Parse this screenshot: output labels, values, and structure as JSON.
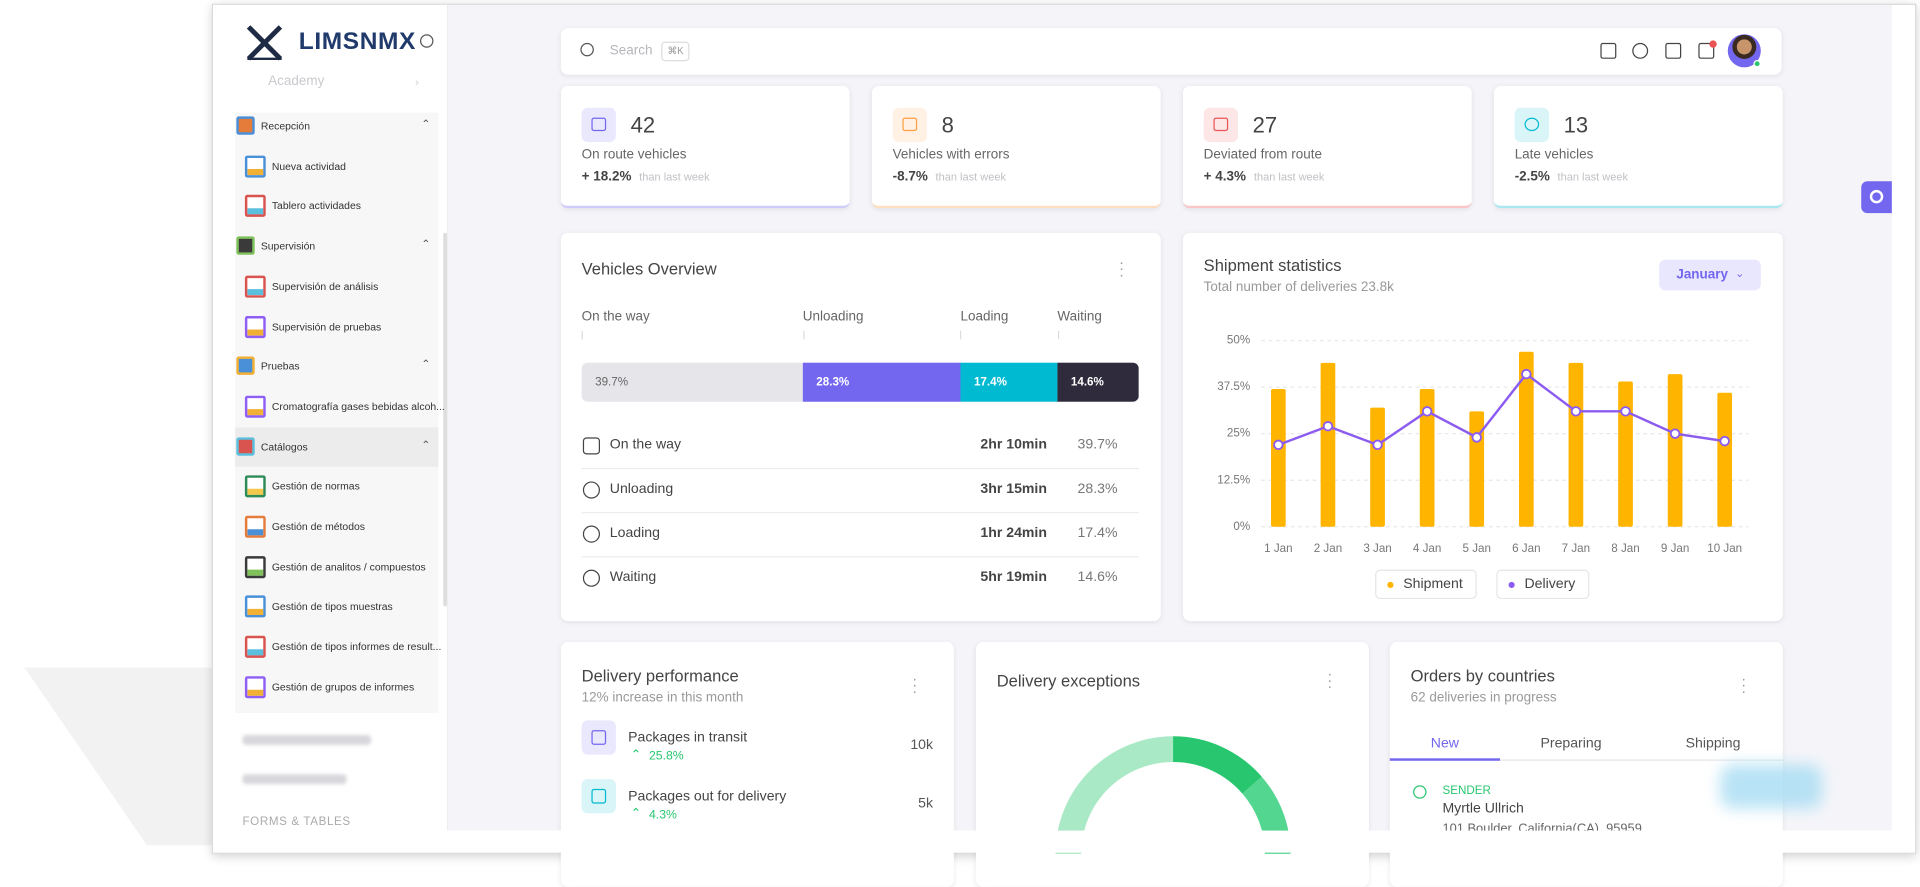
{
  "sidebar": {
    "brand": "LIMSNMX",
    "academy": "Academy",
    "sections": [
      {
        "title": "Recepción",
        "items": [
          "Nueva actividad",
          "Tablero actividades"
        ]
      },
      {
        "title": "Supervisión",
        "items": [
          "Supervisión de análisis",
          "Supervisión de pruebas"
        ]
      },
      {
        "title": "Pruebas",
        "items": [
          "Cromatografía gases bebidas alcoh..."
        ]
      },
      {
        "title": "Catálogos",
        "items": [
          "Gestión de normas",
          "Gestión de métodos",
          "Gestión de analitos / compuestos",
          "Gestión de tipos muestras",
          "Gestión de tipos informes de result...",
          "Gestión de grupos de informes"
        ]
      }
    ],
    "footer_heading": "FORMS & TABLES"
  },
  "search": {
    "placeholder": "Search",
    "shortcut": "⌘K"
  },
  "stats": [
    {
      "value": 42,
      "label": "On route vehicles",
      "change": "+ 18.2%",
      "note": "than last week"
    },
    {
      "value": 8,
      "label": "Vehicles with errors",
      "change": "-8.7%",
      "note": "than last week"
    },
    {
      "value": 27,
      "label": "Deviated from route",
      "change": "+ 4.3%",
      "note": "than last week"
    },
    {
      "value": 13,
      "label": "Late vehicles",
      "change": "-2.5%",
      "note": "than last week"
    }
  ],
  "vehicles_overview": {
    "title": "Vehicles Overview",
    "segments": [
      {
        "name": "On the way",
        "value": 39.7,
        "label": "39.7%",
        "time": "2hr 10min",
        "color": "#e6e6ea"
      },
      {
        "name": "Unloading",
        "value": 28.3,
        "label": "28.3%",
        "time": "3hr 15min",
        "color": "#7367f0"
      },
      {
        "name": "Loading",
        "value": 17.4,
        "label": "17.4%",
        "time": "1hr 24min",
        "color": "#00bad1"
      },
      {
        "name": "Waiting",
        "value": 14.6,
        "label": "14.6%",
        "time": "5hr 19min",
        "color": "#2f2b3d"
      }
    ]
  },
  "chart_data": {
    "type": "bar",
    "title": "Shipment statistics",
    "subtitle": "Total number of deliveries 23.8k",
    "period": "January",
    "categories": [
      "1 Jan",
      "2 Jan",
      "3 Jan",
      "4 Jan",
      "5 Jan",
      "6 Jan",
      "7 Jan",
      "8 Jan",
      "9 Jan",
      "10 Jan"
    ],
    "series": [
      {
        "name": "Shipment",
        "type": "bar",
        "color": "#ffb400",
        "values": [
          37,
          44,
          32,
          37,
          31,
          47,
          44,
          39,
          41,
          36
        ]
      },
      {
        "name": "Delivery",
        "type": "line",
        "color": "#8c5cf0",
        "values": [
          22,
          27,
          22,
          31,
          24,
          41,
          31,
          31,
          25,
          23
        ]
      }
    ],
    "ylim": [
      0,
      50
    ],
    "yticks": [
      {
        "value": 0,
        "label": "0%"
      },
      {
        "value": 12.5,
        "label": "12.5%"
      },
      {
        "value": 25,
        "label": "25%"
      },
      {
        "value": 37.5,
        "label": "37.5%"
      },
      {
        "value": 50,
        "label": "50%"
      }
    ],
    "grid": true
  },
  "delivery_performance": {
    "title": "Delivery performance",
    "subtitle": "12% increase in this month",
    "items": [
      {
        "label": "Packages in transit",
        "change": "25.8%",
        "total": "10k"
      },
      {
        "label": "Packages out for delivery",
        "change": "4.3%",
        "total": "5k"
      }
    ]
  },
  "delivery_exceptions": {
    "title": "Delivery exceptions"
  },
  "orders_by_countries": {
    "title": "Orders by countries",
    "subtitle": "62 deliveries in progress",
    "tabs": [
      "New",
      "Preparing",
      "Shipping"
    ],
    "entry": {
      "role": "SENDER",
      "name": "Myrtle Ullrich",
      "address": "101 Boulder, California(CA), 95959"
    }
  }
}
